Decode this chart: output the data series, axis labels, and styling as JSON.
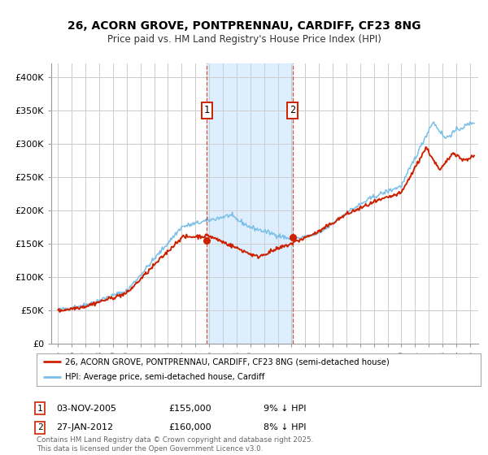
{
  "title_line1": "26, ACORN GROVE, PONTPRENNAU, CARDIFF, CF23 8NG",
  "title_line2": "Price paid vs. HM Land Registry's House Price Index (HPI)",
  "background_color": "#ffffff",
  "plot_bg_color": "#ffffff",
  "grid_color": "#cccccc",
  "sale1_date_num": 2005.84,
  "sale1_price": 155000,
  "sale1_note": "9% ↓ HPI",
  "sale1_date_str": "03-NOV-2005",
  "sale2_date_num": 2012.07,
  "sale2_price": 160000,
  "sale2_note": "8% ↓ HPI",
  "sale2_date_str": "27-JAN-2012",
  "hpi_color": "#7bbfe8",
  "price_color": "#cc2200",
  "shade_color": "#ddeeff",
  "legend_label_price": "26, ACORN GROVE, PONTPRENNAU, CARDIFF, CF23 8NG (semi-detached house)",
  "legend_label_hpi": "HPI: Average price, semi-detached house, Cardiff",
  "footer": "Contains HM Land Registry data © Crown copyright and database right 2025.\nThis data is licensed under the Open Government Licence v3.0.",
  "ylim_max": 420000,
  "xlim_min": 1994.5,
  "xlim_max": 2025.6
}
